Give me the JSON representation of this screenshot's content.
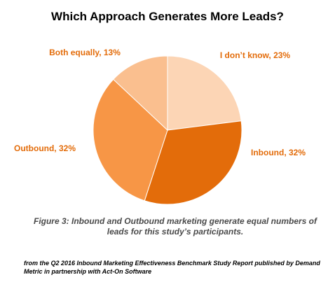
{
  "title": "Which Approach Generates More Leads?",
  "caption": "Figure 3: Inbound and Outbound marketing generate equal numbers of leads for this study’s participants.",
  "source": "from the Q2 2016 Inbound Marketing Effectiveness Benchmark Study Report published by Demand Metric in partnership with Act-On Software",
  "colors": {
    "label": "#e36c0a",
    "caption": "#4a4a4a"
  },
  "chart_data": {
    "type": "pie",
    "title": "Which Approach Generates More Leads?",
    "slices": [
      {
        "label": "I don’t know, 23%",
        "value": 23,
        "color": "#fcd5b5"
      },
      {
        "label": "Inbound, 32%",
        "value": 32,
        "color": "#e36c0a"
      },
      {
        "label": "Outbound, 32%",
        "value": 32,
        "color": "#f79646"
      },
      {
        "label": "Both equally, 13%",
        "value": 13,
        "color": "#fabf8f"
      }
    ],
    "start_angle": "12 o'clock",
    "direction": "clockwise",
    "legend": "none"
  }
}
